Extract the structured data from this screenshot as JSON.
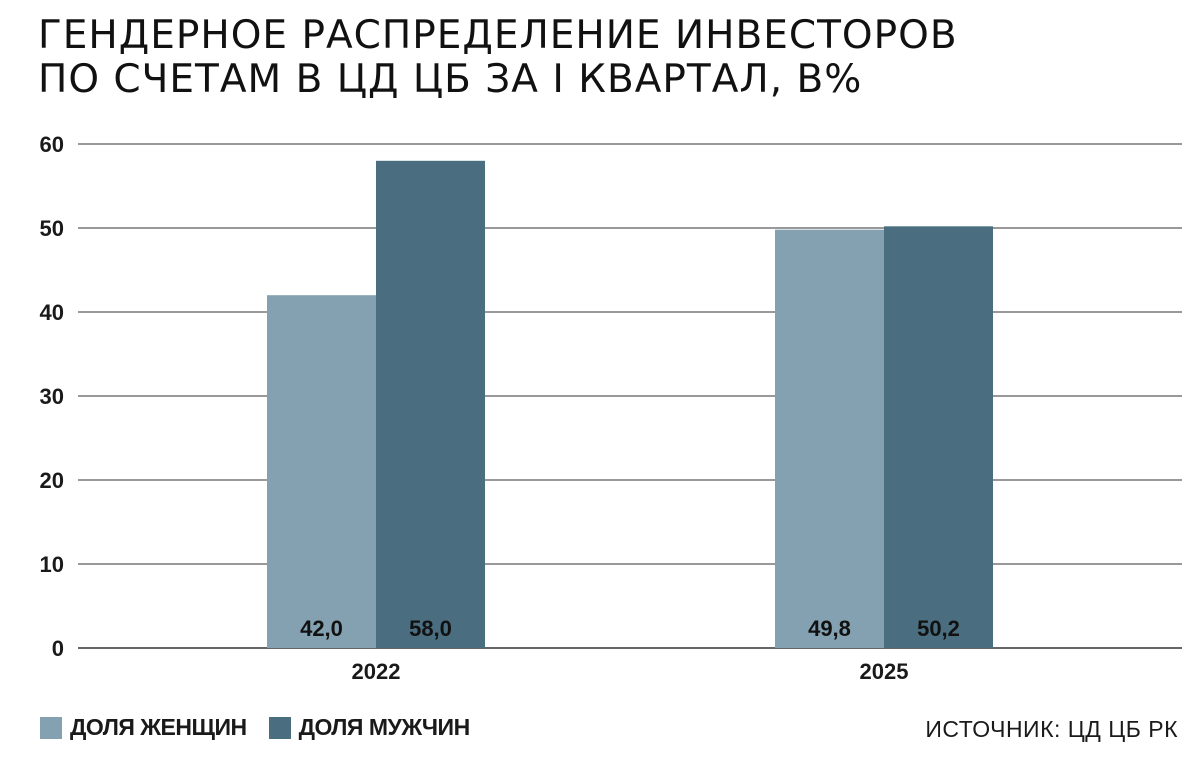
{
  "title_lines": [
    "ГЕНДЕРНОЕ РАСПРЕДЕЛЕНИЕ ИНВЕСТОРОВ",
    "ПО СЧЕТАМ В ЦД ЦБ ЗА I КВАРТАЛ, В%"
  ],
  "source": "ИСТОЧНИК: ЦД ЦБ РК",
  "colors": {
    "women": "#83a1b1",
    "men": "#4a6e80",
    "grid": "#333333"
  },
  "chart_data": {
    "type": "bar",
    "title": "ГЕНДЕРНОЕ РАСПРЕДЕЛЕНИЕ ИНВЕСТОРОВ ПО СЧЕТАМ В ЦД ЦБ ЗА I КВАРТАЛ, В%",
    "categories": [
      "2022",
      "2025"
    ],
    "series": [
      {
        "name": "ДОЛЯ ЖЕНЩИН",
        "values": [
          42.0,
          49.8
        ],
        "labels": [
          "42,0",
          "49,8"
        ]
      },
      {
        "name": "ДОЛЯ МУЖЧИН",
        "values": [
          58.0,
          50.2
        ],
        "labels": [
          "58,0",
          "50,2"
        ]
      }
    ],
    "ylim": [
      0,
      60
    ],
    "yticks": [
      "0",
      "10",
      "20",
      "30",
      "40",
      "50",
      "60"
    ],
    "ytick_values": [
      0,
      10,
      20,
      30,
      40,
      50,
      60
    ],
    "xlabel": "",
    "ylabel": "",
    "grid": true,
    "legend_position": "bottom-left"
  }
}
